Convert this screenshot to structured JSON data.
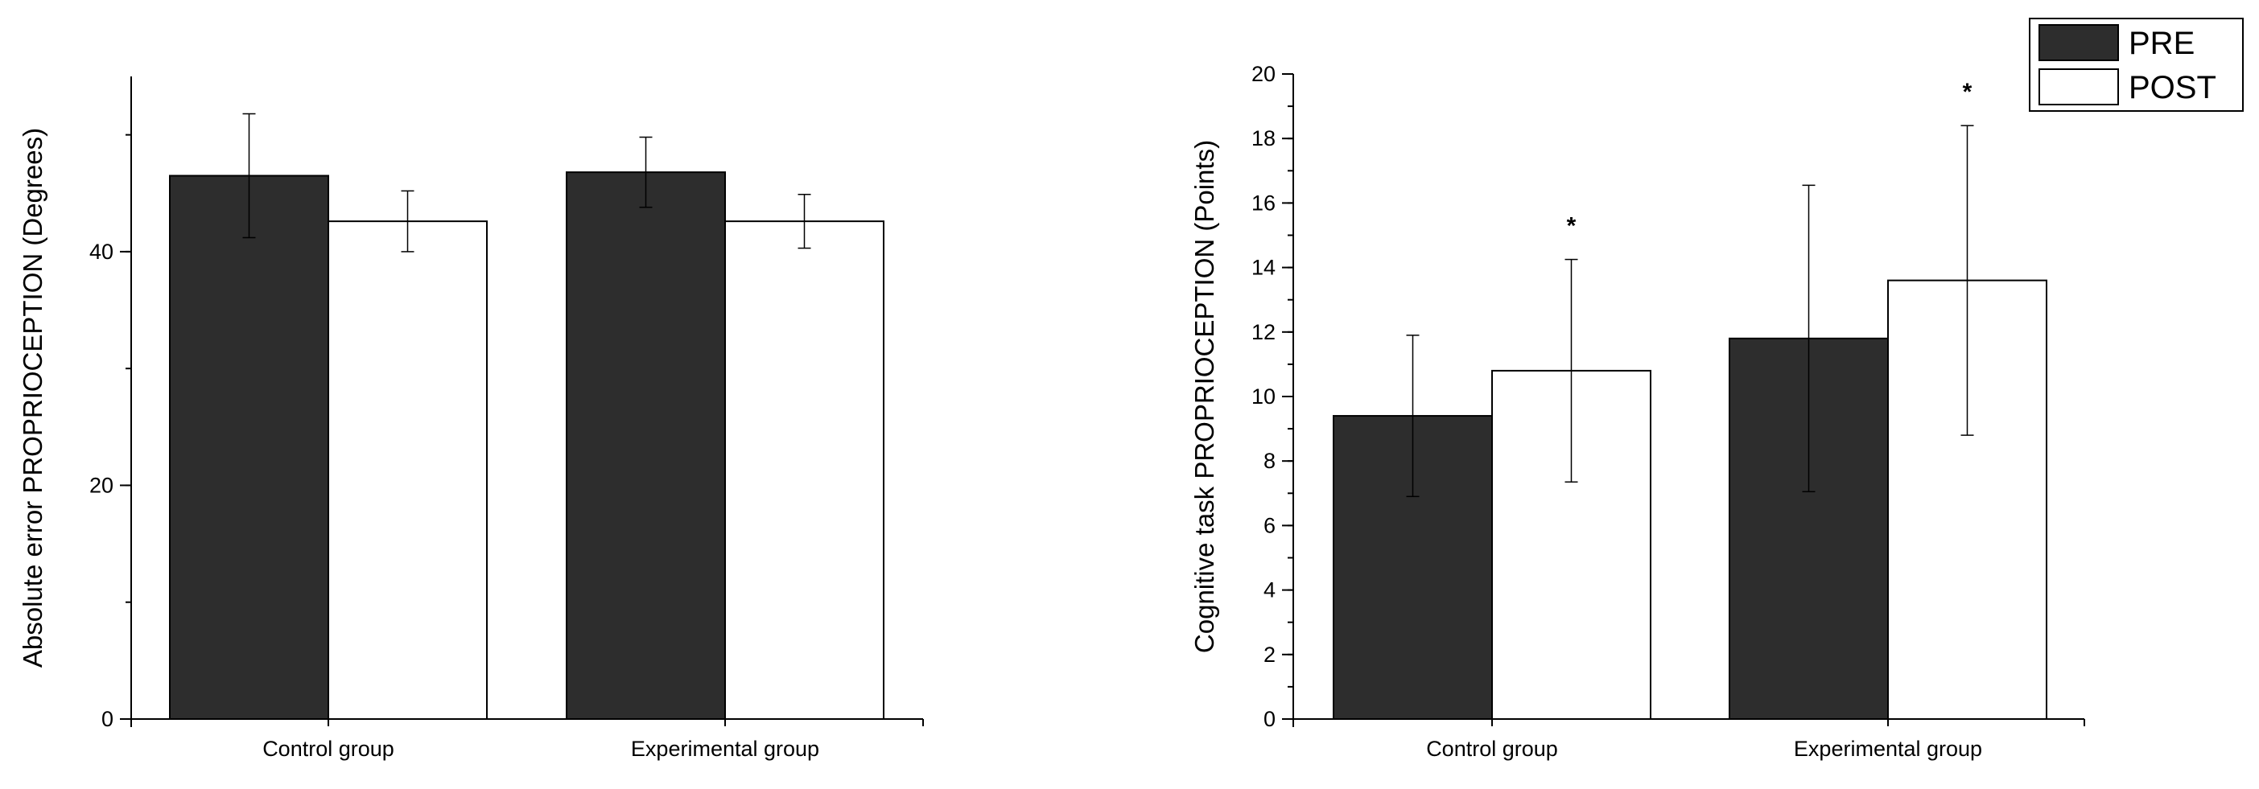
{
  "colors": {
    "pre": "#2d2d2d",
    "post": "#ffffff",
    "axis": "#000000"
  },
  "legend": {
    "pre_label": "PRE",
    "post_label": "POST",
    "placement": "top-right"
  },
  "chart_data": [
    {
      "type": "bar",
      "title": "",
      "xlabel": "",
      "ylabel": "Absolute error PROPRIOCEPTION (Degrees)",
      "categories": [
        "Control group",
        "Experimental group"
      ],
      "ylim": [
        0,
        55
      ],
      "yticks": [
        0,
        20,
        40
      ],
      "series": [
        {
          "name": "PRE",
          "values": [
            46.5,
            46.8
          ],
          "errors": [
            5.3,
            3.0
          ]
        },
        {
          "name": "POST",
          "values": [
            42.6,
            42.6
          ],
          "errors": [
            2.6,
            2.3
          ]
        }
      ],
      "annotations": []
    },
    {
      "type": "bar",
      "title": "",
      "xlabel": "",
      "ylabel": "Cognitive task PROPRIOCEPTION (Points)",
      "categories": [
        "Control group",
        "Experimental group"
      ],
      "ylim": [
        0,
        20
      ],
      "yticks": [
        0,
        2,
        4,
        6,
        8,
        10,
        12,
        14,
        16,
        18,
        20
      ],
      "series": [
        {
          "name": "PRE",
          "values": [
            9.4,
            11.8
          ],
          "errors": [
            2.5,
            4.75
          ]
        },
        {
          "name": "POST",
          "values": [
            10.8,
            13.6
          ],
          "errors": [
            3.45,
            4.8
          ]
        }
      ],
      "annotations": [
        {
          "text": "*",
          "category": 0,
          "series": "POST"
        },
        {
          "text": "*",
          "category": 1,
          "series": "POST"
        }
      ]
    }
  ]
}
